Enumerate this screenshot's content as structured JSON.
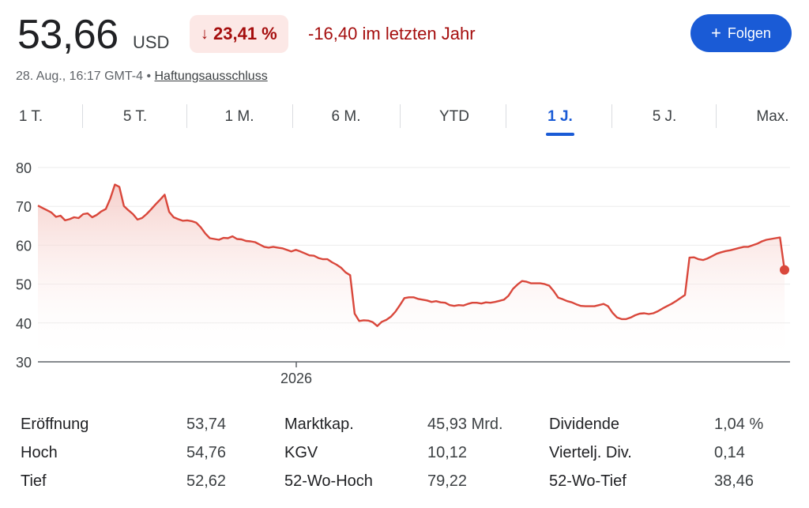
{
  "quote": {
    "price": "53,66",
    "currency": "USD",
    "change_pct": "23,41 %",
    "change_arrow": "↓",
    "change_abs": "-16,40 im letzten Jahr",
    "follow_label": "Folgen",
    "timestamp": "28. Aug., 16:17 GMT-4",
    "separator": "•",
    "disclaimer": "Haftungsausschluss",
    "down_color": "#a50e0e",
    "accent_color": "#1a5bd6"
  },
  "tabs": [
    {
      "label": "1 T."
    },
    {
      "label": "5 T."
    },
    {
      "label": "1 M."
    },
    {
      "label": "6 M."
    },
    {
      "label": "YTD"
    },
    {
      "label": "1 J.",
      "active": true
    },
    {
      "label": "5 J."
    },
    {
      "label": "Max."
    }
  ],
  "chart_data": {
    "type": "area",
    "y_ticks": [
      "80",
      "70",
      "60",
      "50",
      "40",
      "30"
    ],
    "ylim": [
      30,
      80
    ],
    "x_tick_label": "2026",
    "line_color": "#d9473b",
    "values": [
      70.2,
      69.6,
      69.0,
      68.4,
      67.3,
      67.6,
      66.4,
      66.7,
      67.2,
      67.0,
      68.0,
      68.2,
      67.2,
      67.8,
      68.7,
      69.3,
      72.0,
      75.6,
      75.0,
      70.1,
      69.0,
      68.0,
      66.6,
      67.0,
      68.0,
      69.2,
      70.5,
      71.7,
      73.0,
      68.6,
      67.2,
      66.7,
      66.3,
      66.4,
      66.2,
      65.8,
      64.6,
      63.0,
      61.8,
      61.6,
      61.4,
      61.9,
      61.8,
      62.3,
      61.6,
      61.5,
      61.1,
      61.0,
      60.8,
      60.2,
      59.6,
      59.4,
      59.6,
      59.4,
      59.2,
      58.8,
      58.4,
      58.8,
      58.4,
      57.9,
      57.4,
      57.3,
      56.7,
      56.4,
      56.4,
      55.6,
      55.0,
      54.2,
      53.0,
      52.3,
      42.4,
      40.5,
      40.7,
      40.6,
      40.2,
      39.2,
      40.3,
      40.8,
      41.6,
      42.9,
      44.6,
      46.4,
      46.6,
      46.6,
      46.2,
      46.0,
      45.8,
      45.4,
      45.6,
      45.3,
      45.2,
      44.6,
      44.4,
      44.6,
      44.5,
      44.9,
      45.2,
      45.2,
      45.0,
      45.3,
      45.2,
      45.4,
      45.7,
      46.0,
      47.0,
      48.8,
      49.9,
      50.8,
      50.6,
      50.2,
      50.2,
      50.2,
      50.0,
      49.6,
      48.2,
      46.5,
      46.1,
      45.6,
      45.3,
      44.8,
      44.4,
      44.3,
      44.3,
      44.3,
      44.6,
      44.9,
      44.3,
      42.6,
      41.4,
      41.0,
      41.0,
      41.4,
      42.0,
      42.4,
      42.5,
      42.3,
      42.5,
      43.0,
      43.7,
      44.3,
      44.9,
      45.6,
      46.4,
      47.2,
      56.8,
      56.9,
      56.4,
      56.2,
      56.6,
      57.2,
      57.8,
      58.2,
      58.5,
      58.7,
      59.0,
      59.3,
      59.6,
      59.6,
      60.0,
      60.4,
      61.0,
      61.4,
      61.6,
      61.8,
      62.0,
      53.66
    ],
    "end_value": 53.66
  },
  "stats": {
    "col1": [
      {
        "label": "Eröffnung",
        "value": "53,74"
      },
      {
        "label": "Hoch",
        "value": "54,76"
      },
      {
        "label": "Tief",
        "value": "52,62"
      }
    ],
    "col2": [
      {
        "label": "Marktkap.",
        "value": "45,93 Mrd."
      },
      {
        "label": "KGV",
        "value": "10,12"
      },
      {
        "label": "52-Wo-Hoch",
        "value": "79,22"
      }
    ],
    "col3": [
      {
        "label": "Dividende",
        "value": "1,04 %"
      },
      {
        "label": "Viertelj. Div.",
        "value": "0,14"
      },
      {
        "label": "52-Wo-Tief",
        "value": "38,46"
      }
    ]
  }
}
